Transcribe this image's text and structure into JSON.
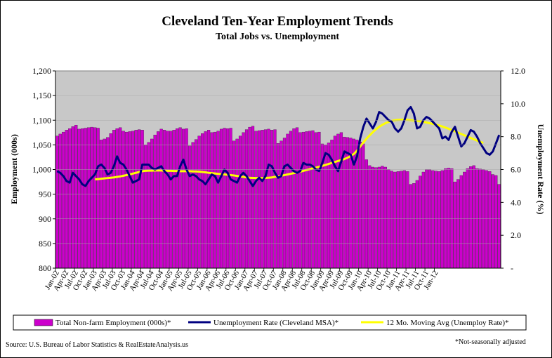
{
  "chart_data": {
    "type": "bar",
    "title": "Cleveland Ten-Year Employment Trends",
    "subtitle": "Total Jobs vs. Unemployment",
    "ylabel_left": "Employment (000s)",
    "ylabel_right": "Unemployment Rate (%)",
    "ylim_left": [
      800,
      1200
    ],
    "ylim_right": [
      0,
      12
    ],
    "left_ticks": [
      "800",
      "850",
      "900",
      "950",
      "1,000",
      "1,050",
      "1,100",
      "1,150",
      "1,200"
    ],
    "right_ticks": [
      "-",
      "2.0",
      "4.0",
      "6.0",
      "8.0",
      "10.0",
      "12.0"
    ],
    "x_tick_labels": [
      "Jan-02",
      "Apr-02",
      "Jul-02",
      "Oct-02",
      "Jan-03",
      "Apr-03",
      "Jul-03",
      "Oct-03",
      "Jan-04",
      "Apr-04",
      "Jul-04",
      "Oct-04",
      "Jan-05",
      "Apr-05",
      "Jul-05",
      "Oct-05",
      "Jan-06",
      "Apr-06",
      "Jul-06",
      "Oct-06",
      "Jan-07",
      "Apr-07",
      "Jul-07",
      "Oct-07",
      "Jan-08",
      "Apr-08",
      "Jul-08",
      "Oct-08",
      "Jan-09",
      "Apr-09",
      "Jul-09",
      "Oct-09",
      "Jan-10",
      "Apr-10",
      "Jul-10",
      "Oct-10",
      "Jan-11",
      "Apr-11",
      "Jul-11",
      "Oct-11",
      "Jan-12"
    ],
    "plot_background": "#c8c8c8",
    "series": [
      {
        "name": "Total Non-farm Employment (000s)*",
        "kind": "bar",
        "axis": "left",
        "color": "#cc00cc",
        "values": [
          1068,
          1072,
          1076,
          1080,
          1083,
          1087,
          1090,
          1082,
          1083,
          1084,
          1085,
          1086,
          1085,
          1084,
          1060,
          1062,
          1065,
          1073,
          1080,
          1083,
          1085,
          1078,
          1076,
          1077,
          1078,
          1080,
          1081,
          1080,
          1050,
          1055,
          1062,
          1070,
          1077,
          1082,
          1080,
          1078,
          1078,
          1080,
          1083,
          1085,
          1082,
          1083,
          1048,
          1055,
          1061,
          1068,
          1073,
          1077,
          1080,
          1075,
          1076,
          1078,
          1082,
          1084,
          1083,
          1084,
          1058,
          1062,
          1068,
          1075,
          1081,
          1086,
          1088,
          1078,
          1079,
          1080,
          1081,
          1082,
          1080,
          1081,
          1053,
          1058,
          1064,
          1072,
          1078,
          1083,
          1085,
          1075,
          1076,
          1077,
          1078,
          1079,
          1075,
          1076,
          1052,
          1050,
          1054,
          1060,
          1068,
          1072,
          1075,
          1066,
          1065,
          1064,
          1062,
          1060,
          1056,
          1052,
          1020,
          1008,
          1005,
          1004,
          1005,
          1007,
          1005,
          1000,
          997,
          995,
          996,
          997,
          998,
          996,
          970,
          972,
          978,
          987,
          995,
          1000,
          1000,
          998,
          997,
          996,
          998,
          1002,
          1003,
          1002,
          975,
          980,
          988,
          995,
          1002,
          1006,
          1008,
          1002,
          1001,
          1000,
          998,
          996,
          990,
          988,
          970
        ]
      },
      {
        "name": "Unemployment Rate (Cleveland MSA)*",
        "kind": "line",
        "axis": "right",
        "color": "#000080",
        "values": [
          5.9,
          5.8,
          5.6,
          5.3,
          5.2,
          5.8,
          5.6,
          5.4,
          5.1,
          5.0,
          5.3,
          5.5,
          5.7,
          6.2,
          6.3,
          6.1,
          5.7,
          5.8,
          6.2,
          6.8,
          6.4,
          6.3,
          6.0,
          5.6,
          5.2,
          5.3,
          5.4,
          6.3,
          6.3,
          6.3,
          6.1,
          6.0,
          6.1,
          6.2,
          5.9,
          5.7,
          5.4,
          5.6,
          5.6,
          6.2,
          6.6,
          6.0,
          5.6,
          5.7,
          5.6,
          5.4,
          5.3,
          5.1,
          5.4,
          5.7,
          5.6,
          5.2,
          5.6,
          6.0,
          5.8,
          5.4,
          5.3,
          5.2,
          5.6,
          5.8,
          5.6,
          5.3,
          5.0,
          5.3,
          5.5,
          5.3,
          5.6,
          6.3,
          6.2,
          5.8,
          5.5,
          5.6,
          6.2,
          6.3,
          6.1,
          5.9,
          5.8,
          5.9,
          6.4,
          6.3,
          6.3,
          6.2,
          6.0,
          5.9,
          6.4,
          7.0,
          6.9,
          6.6,
          6.2,
          5.9,
          6.5,
          7.1,
          7.0,
          6.9,
          6.3,
          6.8,
          7.9,
          8.6,
          9.1,
          8.8,
          8.5,
          8.9,
          9.5,
          9.4,
          9.2,
          9.0,
          8.9,
          8.5,
          8.3,
          8.5,
          9.0,
          9.6,
          9.8,
          9.4,
          8.5,
          8.6,
          9.0,
          9.2,
          9.1,
          8.9,
          8.7,
          8.5,
          7.9,
          8.0,
          7.8,
          8.3,
          8.6,
          8.0,
          7.4,
          7.6,
          8.0,
          8.4,
          8.3,
          8.0,
          7.6,
          7.3,
          7.0,
          6.9,
          7.1,
          7.6,
          8.1
        ]
      },
      {
        "name": "12 Mo. Moving Avg (Unemploy Rate)*",
        "kind": "line",
        "axis": "right",
        "color": "#ffff00",
        "start_index": 12,
        "values": [
          5.4,
          5.42,
          5.44,
          5.46,
          5.48,
          5.5,
          5.52,
          5.55,
          5.58,
          5.62,
          5.66,
          5.7,
          5.75,
          5.8,
          5.85,
          5.9,
          5.92,
          5.93,
          5.93,
          5.94,
          5.94,
          5.94,
          5.93,
          5.92,
          5.92,
          5.91,
          5.91,
          5.9,
          5.9,
          5.9,
          5.9,
          5.89,
          5.88,
          5.87,
          5.85,
          5.83,
          5.8,
          5.78,
          5.76,
          5.74,
          5.72,
          5.7,
          5.68,
          5.66,
          5.64,
          5.61,
          5.58,
          5.55,
          5.52,
          5.5,
          5.49,
          5.48,
          5.48,
          5.48,
          5.49,
          5.5,
          5.52,
          5.55,
          5.58,
          5.62,
          5.66,
          5.7,
          5.74,
          5.78,
          5.82,
          5.87,
          5.92,
          5.97,
          6.02,
          6.07,
          6.12,
          6.17,
          6.22,
          6.28,
          6.34,
          6.4,
          6.46,
          6.52,
          6.58,
          6.64,
          6.72,
          6.82,
          6.95,
          7.15,
          7.4,
          7.65,
          7.88,
          8.08,
          8.27,
          8.45,
          8.6,
          8.72,
          8.82,
          8.9,
          8.96,
          9.0,
          9.02,
          9.03,
          9.03,
          9.02,
          9.0,
          8.98,
          8.96,
          8.93,
          8.9,
          8.86,
          8.82,
          8.78,
          8.73,
          8.68,
          8.62,
          8.55,
          8.48,
          8.4,
          8.32,
          8.24,
          8.16,
          8.08,
          8.0,
          7.92,
          7.84,
          7.76,
          7.68,
          7.62
        ]
      }
    ],
    "legend_placement": "bottom",
    "notes": {
      "source": "Source: U.S. Bureau of Labor Statistics & RealEstateAnalysis.us",
      "footnote": "*Not-seasonally adjusted"
    }
  }
}
